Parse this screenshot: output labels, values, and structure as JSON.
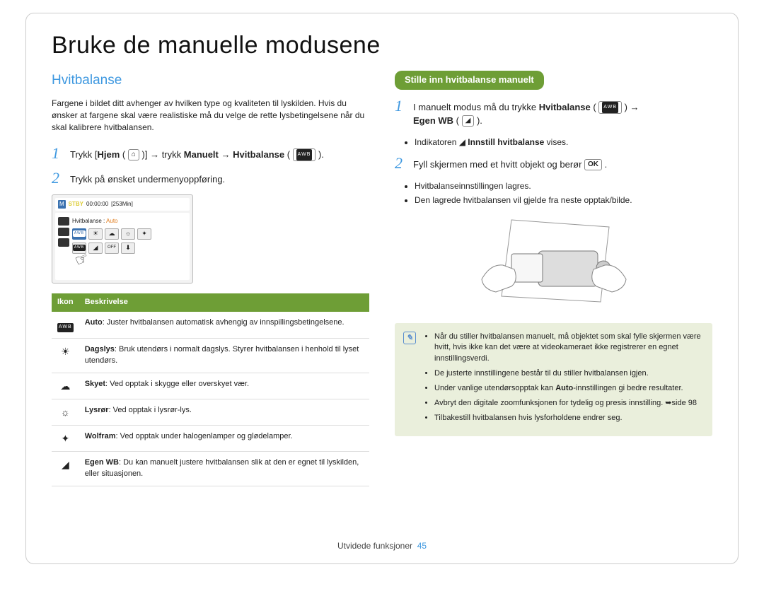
{
  "page": {
    "title": "Bruke de manuelle modusene",
    "footer_section": "Utvidede funksjoner",
    "page_number": 45
  },
  "left": {
    "section_title": "Hvitbalanse",
    "intro": "Fargene i bildet ditt avhenger av hvilken type og kvaliteten til lyskilden. Hvis du ønsker at fargene skal være realistiske må du velge de rette lysbetingelsene når du skal kalibrere hvitbalansen.",
    "step1_pre": "Trykk [",
    "step1_b1": "Hjem",
    "step1_mid1": " ( ",
    "step1_home_icon": "⌂",
    "step1_mid2": " )] → trykk ",
    "step1_b2": "Manuelt",
    "step1_arrow": " → ",
    "step1_b3": "Hvitbalanse",
    "step1_post": " ( ",
    "step1_wb_icon": "AWB",
    "step1_end": " ).",
    "step2": "Trykk på ønsket undermenyoppføring.",
    "lcd": {
      "stby": "STBY",
      "time": "00:00:00",
      "remain": "[253Min]",
      "label": "Hvitbalanse : ",
      "label_value": "Auto"
    },
    "table": {
      "header_icon": "Ikon",
      "header_desc": "Beskrivelse",
      "rows": [
        {
          "icon": "AWB",
          "icon_type": "awb",
          "name": "Auto",
          "desc": ": Juster hvitbalansen automatisk avhengig av innspillingsbetingelsene."
        },
        {
          "icon": "☀",
          "icon_type": "glyph",
          "name": "Dagslys",
          "desc": ": Bruk utendørs i normalt dagslys. Styrer hvitbalansen i henhold til lyset utendørs."
        },
        {
          "icon": "☁",
          "icon_type": "glyph",
          "name": "Skyet",
          "desc": ": Ved opptak i skygge eller overskyet vær."
        },
        {
          "icon": "☼",
          "icon_type": "fluor",
          "name": "Lysrør",
          "desc": ": Ved opptak i lysrør-lys."
        },
        {
          "icon": "✦",
          "icon_type": "tungsten",
          "name": "Wolfram",
          "desc": ": Ved opptak under halogenlamper og glødelamper."
        },
        {
          "icon": "◢",
          "icon_type": "custom",
          "name": "Egen WB",
          "desc": ": Du kan manuelt justere hvitbalansen slik at den er egnet til lyskilden, eller situasjonen."
        }
      ]
    }
  },
  "right": {
    "pill": "Stille inn hvitbalanse manuelt",
    "step1_pre": "I manuelt modus må du trykke ",
    "step1_b1": "Hvitbalanse",
    "step1_mid1": " ( ",
    "step1_icon1": "AWB",
    "step1_mid2": " ) → ",
    "step1_b2": "Egen WB",
    "step1_mid3": " ( ",
    "step1_icon2": "◢",
    "step1_end": " ).",
    "step1_sub_pre": "Indikatoren ",
    "step1_sub_icon": "◢",
    "step1_sub_b": "Innstill hvitbalanse",
    "step1_sub_post": " vises.",
    "step2_pre": "Fyll skjermen med et hvitt objekt og berør ",
    "step2_ok": "OK",
    "step2_post": " .",
    "step2_sub1": "Hvitbalanseinnstillingen lagres.",
    "step2_sub2": "Den lagrede hvitbalansen vil gjelde fra neste opptak/bilde.",
    "note": {
      "items": [
        "Når du stiller hvitbalansen manuelt, må objektet som skal fylle skjermen være hvitt, hvis ikke kan det være at videokameraet ikke registrerer en egnet innstillingsverdi.",
        "De justerte innstillingene består til du stiller hvitbalansen igjen.",
        "Under vanlige utendørsopptak kan <b>Auto</b>-innstillingen gi bedre resultater.",
        "Avbryt den digitale zoomfunksjonen for tydelig og presis innstilling. ➥side 98",
        "Tilbakestill hvitbalansen hvis lysforholdene endrer seg."
      ]
    }
  },
  "colors": {
    "accent": "#3e98e0",
    "green": "#6e9e36",
    "note_bg": "#eaefdc"
  }
}
